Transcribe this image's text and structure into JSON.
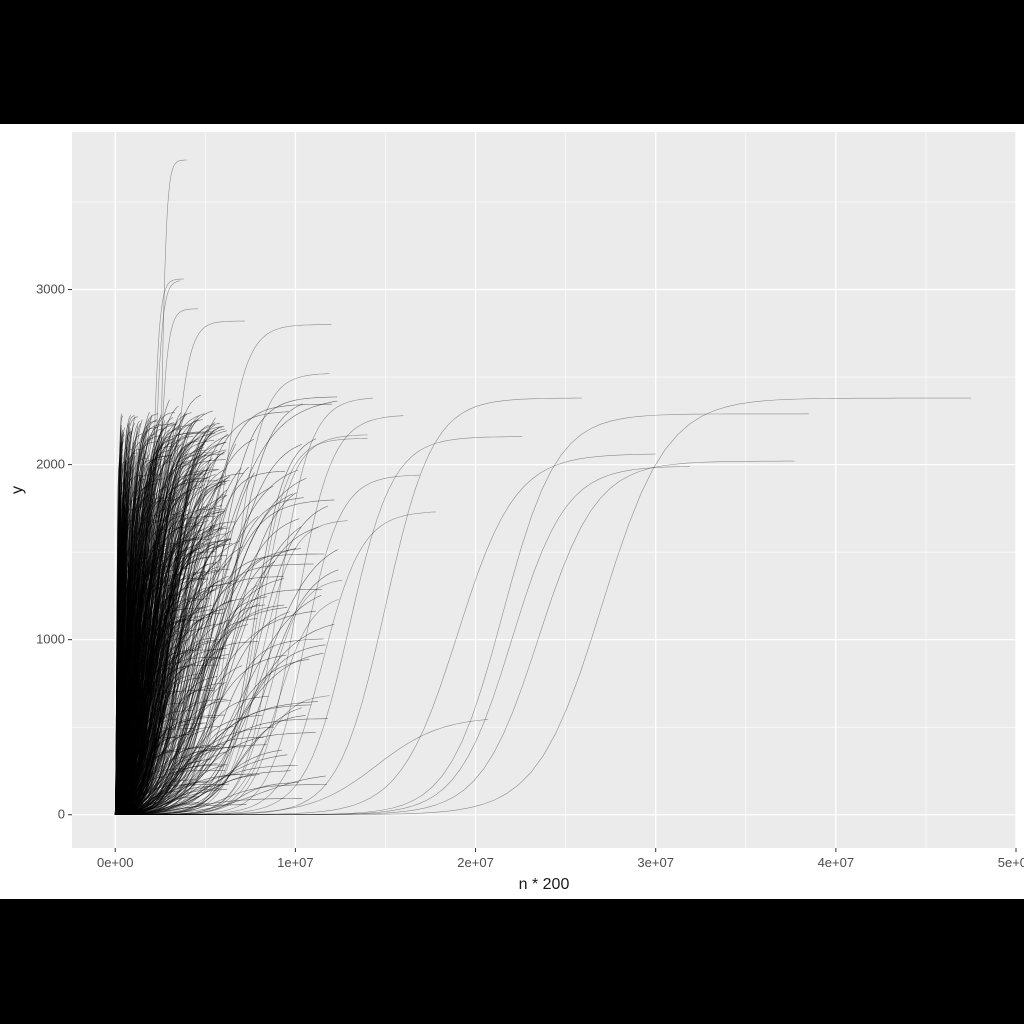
{
  "chart_data": {
    "type": "line",
    "title": "",
    "xlabel": "n * 200",
    "ylabel": "y",
    "xlim": [
      -2400000,
      50000000
    ],
    "ylim": [
      -190,
      3900
    ],
    "x_ticks": [
      {
        "value": 0,
        "label": "0e+00"
      },
      {
        "value": 10000000,
        "label": "1e+07"
      },
      {
        "value": 20000000,
        "label": "2e+07"
      },
      {
        "value": 30000000,
        "label": "3e+07"
      },
      {
        "value": 40000000,
        "label": "4e+07"
      },
      {
        "value": 50000000,
        "label": "5e+07"
      }
    ],
    "y_ticks": [
      {
        "value": 0,
        "label": "0"
      },
      {
        "value": 1000,
        "label": "1000"
      },
      {
        "value": 2000,
        "label": "2000"
      },
      {
        "value": 3000,
        "label": "3000"
      }
    ],
    "grid": true,
    "panel_background": "#ebebeb",
    "line_color": "#000000",
    "legend": "none",
    "curve_shape": "logistic",
    "series_count": 1000,
    "dense_cluster": {
      "count": 820,
      "x_end_range": [
        300000,
        6500000
      ],
      "plateau_range": [
        0,
        2300
      ],
      "midpoint_fraction": [
        0.2,
        0.6
      ]
    },
    "series": [
      {
        "x_end": 4000000,
        "plateau": 3740,
        "midpoint": 2500000,
        "scale": 160000
      },
      {
        "x_end": 3800000,
        "plateau": 3060,
        "midpoint": 2000000,
        "scale": 200000
      },
      {
        "x_end": 3600000,
        "plateau": 3050,
        "midpoint": 2100000,
        "scale": 220000
      },
      {
        "x_end": 4600000,
        "plateau": 2890,
        "midpoint": 2300000,
        "scale": 260000
      },
      {
        "x_end": 7200000,
        "plateau": 2820,
        "midpoint": 3000000,
        "scale": 450000
      },
      {
        "x_end": 12000000,
        "plateau": 2800,
        "midpoint": 5500000,
        "scale": 750000
      },
      {
        "x_end": 11900000,
        "plateau": 2520,
        "midpoint": 6500000,
        "scale": 800000
      },
      {
        "x_end": 14300000,
        "plateau": 2380,
        "midpoint": 9000000,
        "scale": 900000
      },
      {
        "x_end": 16000000,
        "plateau": 2280,
        "midpoint": 10000000,
        "scale": 1000000
      },
      {
        "x_end": 25900000,
        "plateau": 2380,
        "midpoint": 15000000,
        "scale": 1300000
      },
      {
        "x_end": 22600000,
        "plateau": 2160,
        "midpoint": 13000000,
        "scale": 1200000
      },
      {
        "x_end": 14000000,
        "plateau": 2170,
        "midpoint": 8000000,
        "scale": 900000
      },
      {
        "x_end": 14000000,
        "plateau": 2150,
        "midpoint": 7800000,
        "scale": 850000
      },
      {
        "x_end": 16900000,
        "plateau": 1940,
        "midpoint": 10500000,
        "scale": 1000000
      },
      {
        "x_end": 17800000,
        "plateau": 1730,
        "midpoint": 11500000,
        "scale": 1100000
      },
      {
        "x_end": 12900000,
        "plateau": 1680,
        "midpoint": 8000000,
        "scale": 900000
      },
      {
        "x_end": 12600000,
        "plateau": 1340,
        "midpoint": 8500000,
        "scale": 900000
      },
      {
        "x_end": 12400000,
        "plateau": 1230,
        "midpoint": 9000000,
        "scale": 950000
      },
      {
        "x_end": 11900000,
        "plateau": 680,
        "midpoint": 8000000,
        "scale": 900000
      },
      {
        "x_end": 20700000,
        "plateau": 545,
        "midpoint": 14500000,
        "scale": 1800000
      },
      {
        "x_end": 30000000,
        "plateau": 2060,
        "midpoint": 19000000,
        "scale": 1600000
      },
      {
        "x_end": 31900000,
        "plateau": 1990,
        "midpoint": 22000000,
        "scale": 1500000
      },
      {
        "x_end": 37700000,
        "plateau": 2020,
        "midpoint": 23500000,
        "scale": 1600000
      },
      {
        "x_end": 38500000,
        "plateau": 2290,
        "midpoint": 21500000,
        "scale": 1500000
      },
      {
        "x_end": 47500000,
        "plateau": 2380,
        "midpoint": 27000000,
        "scale": 1800000
      }
    ]
  }
}
